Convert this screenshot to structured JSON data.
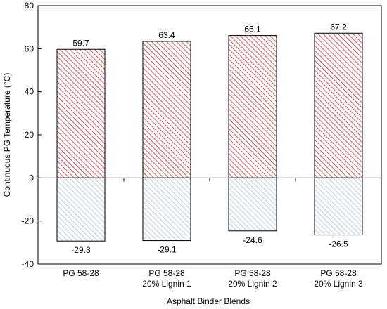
{
  "chart_data": {
    "type": "bar",
    "categories": [
      [
        "PG 58-28"
      ],
      [
        "PG 58-28",
        "20% Lignin 1"
      ],
      [
        "PG 58-28",
        "20% Lignin 2"
      ],
      [
        "PG 58-28",
        "20% Lignin 3"
      ]
    ],
    "series": [
      {
        "values": [
          59.7,
          63.4,
          66.1,
          67.2
        ],
        "color": "#c8323c",
        "hatch": "diagonal"
      },
      {
        "values": [
          -29.3,
          -29.1,
          -24.6,
          -26.5
        ],
        "color": "#a9c3d6",
        "hatch": "diagonal"
      }
    ],
    "xlabel": "Asphalt Binder Blends",
    "ylabel": "Continuous PG Temperature (°C)",
    "ylim": [
      -40,
      80
    ],
    "yticks": [
      -40,
      -20,
      0,
      20,
      40,
      60,
      80
    ],
    "grid": false,
    "zero_line": true
  }
}
